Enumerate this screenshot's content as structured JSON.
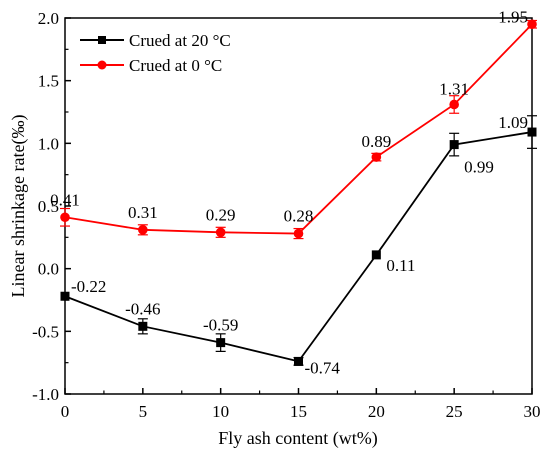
{
  "chart_data": {
    "type": "line",
    "xlabel": "Fly ash content (wt%)",
    "ylabel": "Linear shrinkage rate(‰)",
    "x": [
      0,
      5,
      10,
      15,
      20,
      25,
      30
    ],
    "xlim": [
      0,
      30
    ],
    "ylim": [
      -1.0,
      2.0
    ],
    "xticks": [
      "0",
      "5",
      "10",
      "15",
      "20",
      "25",
      "30"
    ],
    "yticks": [
      "-1.0",
      "-0.5",
      "0.0",
      "0.5",
      "1.0",
      "1.5",
      "2.0"
    ],
    "grid": false,
    "legend_position": "top-left",
    "series": [
      {
        "name": "Crued at 20 °C",
        "color": "#000000",
        "marker": "square",
        "values": [
          -0.22,
          -0.46,
          -0.59,
          -0.74,
          0.11,
          0.99,
          1.09
        ],
        "labels": [
          "-0.22",
          "-0.46",
          "-0.59",
          "-0.74",
          "0.11",
          "0.99",
          "1.09"
        ],
        "errors": [
          0.0,
          0.06,
          0.07,
          0.03,
          0.0,
          0.09,
          0.13
        ]
      },
      {
        "name": "Crued at 0 °C",
        "color": "#ff0000",
        "marker": "circle",
        "values": [
          0.41,
          0.31,
          0.29,
          0.28,
          0.89,
          1.31,
          1.95
        ],
        "labels": [
          "0.41",
          "0.31",
          "0.29",
          "0.28",
          "0.89",
          "1.31",
          "1.95"
        ],
        "errors": [
          0.07,
          0.04,
          0.04,
          0.04,
          0.03,
          0.07,
          0.03
        ]
      }
    ]
  }
}
